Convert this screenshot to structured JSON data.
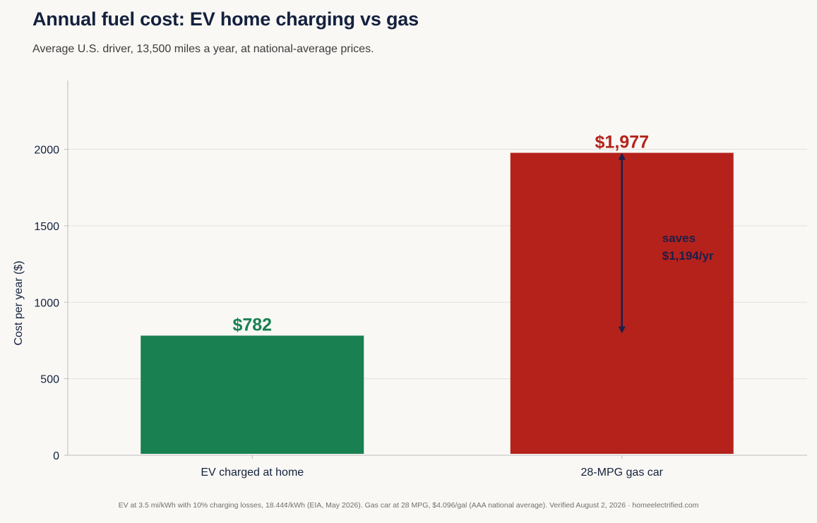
{
  "title": "Annual fuel cost: EV home charging vs gas",
  "subtitle": "Average U.S. driver, 13,500 miles a year, at national-average prices.",
  "footnote": "EV at 3.5 mi/kWh with 10% charging losses, 18.44¢/kWh (EIA, May 2026). Gas car at 28 MPG, $4.096/gal (AAA national average). Verified August 2, 2026 · homeelectrified.com",
  "colors": {
    "ev": "#188051",
    "gas": "#b5221b",
    "arrow": "#1c1f4a",
    "text": "#14213d",
    "grid": "#e2e0dc",
    "axis": "#bdbdbd",
    "background": "#f9f8f5"
  },
  "chart_data": {
    "type": "bar",
    "title": "Annual fuel cost: EV home charging vs gas",
    "subtitle": "Average U.S. driver, 13,500 miles a year, at national-average prices.",
    "xlabel": "",
    "ylabel": "Cost per year ($)",
    "categories": [
      "EV charged at home",
      "28-MPG gas car"
    ],
    "values": [
      782,
      1977
    ],
    "value_labels": [
      "$782",
      "$1,977"
    ],
    "ylim": [
      0,
      2450
    ],
    "yticks": [
      0,
      500,
      1000,
      1500,
      2000
    ],
    "grid": true,
    "annotation": {
      "lines": [
        "saves",
        "$1,194/yr"
      ],
      "from": 782,
      "to": 1977,
      "category": "28-MPG gas car"
    }
  }
}
